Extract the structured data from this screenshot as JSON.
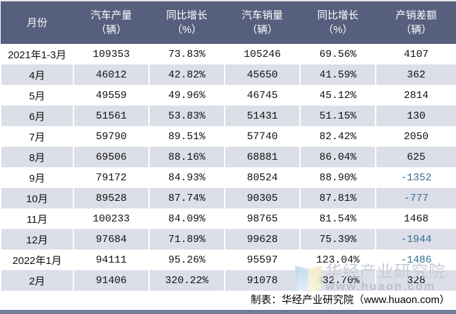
{
  "chart_data": {
    "type": "table",
    "title": "",
    "columns": [
      {
        "label": "月份",
        "unit": ""
      },
      {
        "label": "汽车产量",
        "unit": "（辆）"
      },
      {
        "label": "同比增长",
        "unit": "（%）"
      },
      {
        "label": "汽车销量",
        "unit": "（辆）"
      },
      {
        "label": "同比增长",
        "unit": "（%）"
      },
      {
        "label": "产销差额",
        "unit": "（辆）"
      }
    ],
    "rows": [
      [
        "2021年1-3月",
        "109353",
        "73.83%",
        "105246",
        "69.56%",
        "4107"
      ],
      [
        "4月",
        "46012",
        "42.82%",
        "45650",
        "41.59%",
        "362"
      ],
      [
        "5月",
        "49559",
        "49.96%",
        "46745",
        "45.12%",
        "2814"
      ],
      [
        "6月",
        "51561",
        "53.83%",
        "51431",
        "51.15%",
        "130"
      ],
      [
        "7月",
        "59790",
        "89.51%",
        "57740",
        "82.42%",
        "2050"
      ],
      [
        "8月",
        "69506",
        "88.16%",
        "68881",
        "86.04%",
        "625"
      ],
      [
        "9月",
        "79172",
        "84.93%",
        "80524",
        "88.90%",
        "-1352"
      ],
      [
        "10月",
        "89528",
        "87.74%",
        "90305",
        "87.81%",
        "-777"
      ],
      [
        "11月",
        "100233",
        "84.09%",
        "98765",
        "81.54%",
        "1468"
      ],
      [
        "12月",
        "97684",
        "71.89%",
        "99628",
        "75.39%",
        "-1944"
      ],
      [
        "2022年1月",
        "94111",
        "95.26%",
        "95597",
        "123.04%",
        "-1486"
      ],
      [
        "2月",
        "91406",
        "320.22%",
        "91078",
        "332.70%",
        "328"
      ]
    ],
    "layout": {
      "alternating_rows": true,
      "negative_value_color": "#336f92"
    }
  },
  "footer": {
    "credit": "制表：华经产业研究院（www.huaon.com）"
  },
  "watermark": {
    "name": "华经产业研究院",
    "url": "www.huaon.com"
  },
  "colors": {
    "header_bg": "#565f7d",
    "header_text": "#ffffff",
    "row_alt_bg": "#dcdee8",
    "row_bg": "#ffffff",
    "negative_value": "#336f92",
    "bottom_bar": "#6f7c96",
    "body_text": "#111111"
  }
}
